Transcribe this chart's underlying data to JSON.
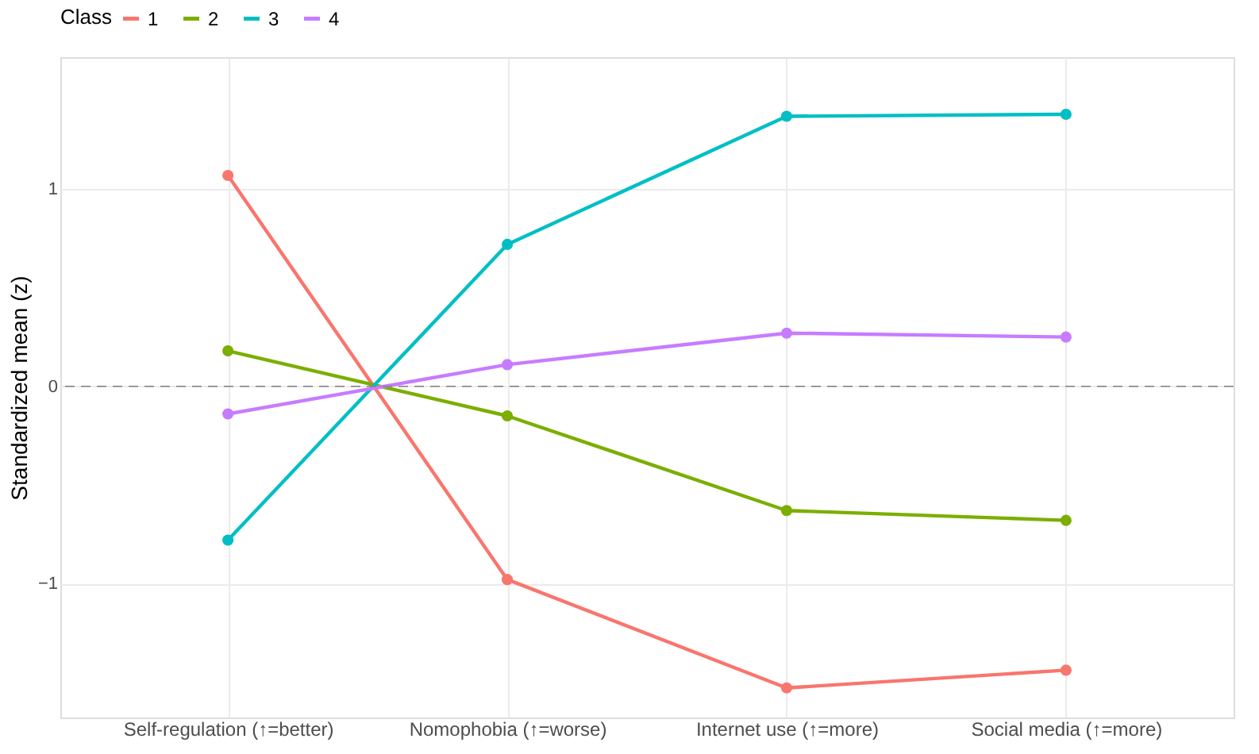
{
  "chart_data": {
    "type": "line",
    "xlabel": null,
    "ylabel": "Standardized mean (z)",
    "legend_title": "Class",
    "categories": [
      "Self-regulation (↑=better)",
      "Nomophobia (↑=worse)",
      "Internet use (↑=more)",
      "Social media (↑=more)"
    ],
    "series": [
      {
        "name": "1",
        "color": "#f8766d",
        "values": [
          1.07,
          -0.98,
          -1.53,
          -1.44
        ]
      },
      {
        "name": "2",
        "color": "#7cae00",
        "values": [
          0.18,
          -0.15,
          -0.63,
          -0.68
        ]
      },
      {
        "name": "3",
        "color": "#00bfc4",
        "values": [
          -0.78,
          0.72,
          1.37,
          1.38
        ]
      },
      {
        "name": "4",
        "color": "#c77cff",
        "values": [
          -0.14,
          0.11,
          0.27,
          0.25
        ]
      }
    ],
    "ylim": [
      -1.68,
      1.67
    ],
    "yticks": [
      -1,
      0,
      1
    ],
    "grid": true,
    "legend": "top",
    "marker": "circle",
    "line_style": "solid",
    "ref_lines": [
      {
        "axis": "y",
        "value": 0,
        "color": "#808080",
        "line_style": "dashed"
      }
    ]
  }
}
